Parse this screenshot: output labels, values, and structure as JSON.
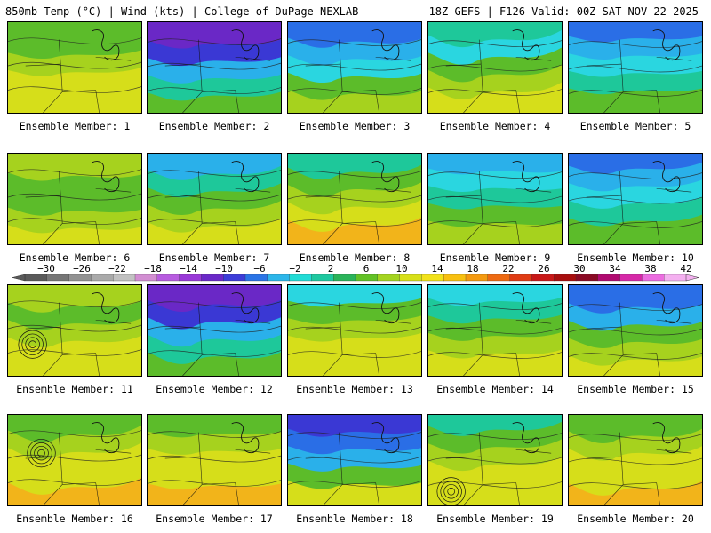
{
  "header": {
    "left": "850mb Temp (°C) | Wind (kts) | College of DuPage NEXLAB",
    "right": "18Z GEFS | F126 Valid: 00Z SAT NOV 22 2025"
  },
  "members": [
    "Ensemble Member: 1",
    "Ensemble Member: 2",
    "Ensemble Member: 3",
    "Ensemble Member: 4",
    "Ensemble Member: 5",
    "Ensemble Member: 6",
    "Ensemble Member: 7",
    "Ensemble Member: 8",
    "Ensemble Member: 9",
    "Ensemble Member: 10",
    "Ensemble Member: 11",
    "Ensemble Member: 12",
    "Ensemble Member: 13",
    "Ensemble Member: 14",
    "Ensemble Member: 15",
    "Ensemble Member: 16",
    "Ensemble Member: 17",
    "Ensemble Member: 18",
    "Ensemble Member: 19",
    "Ensemble Member: 20"
  ],
  "colorbar": {
    "ticks": [
      "−30",
      "−26",
      "−22",
      "−18",
      "−14",
      "−10",
      "−6",
      "−2",
      "2",
      "6",
      "10",
      "14",
      "18",
      "22",
      "26",
      "30",
      "34",
      "38",
      "42"
    ],
    "colors": [
      "#5a5a5a",
      "#767676",
      "#929292",
      "#aaaaaa",
      "#c2c2c2",
      "#d28ed2",
      "#b85ce0",
      "#9a3ad8",
      "#6a28c8",
      "#3c3cd8",
      "#2a74e6",
      "#2cb6ea",
      "#22dcd6",
      "#1ec8a0",
      "#2ab45a",
      "#62c226",
      "#a4d420",
      "#d8e018",
      "#f2e21a",
      "#f8c010",
      "#f49a10",
      "#ee6a12",
      "#e03c14",
      "#c81818",
      "#a80e0e",
      "#8a0a24",
      "#b00a70",
      "#d628a8",
      "#ec6ce0",
      "#f4b0f0"
    ]
  },
  "panel_colors": {
    "yellow": "#d6de1a",
    "yellow_green": "#a6d21e",
    "green": "#5cbc2a",
    "teal": "#1ec89a",
    "cyan": "#2ad6e0",
    "sky": "#2ab0ea",
    "blue": "#2a6ee6",
    "deep_blue": "#3a38d4",
    "purple": "#6a28c6",
    "orange": "#f2b41a"
  }
}
